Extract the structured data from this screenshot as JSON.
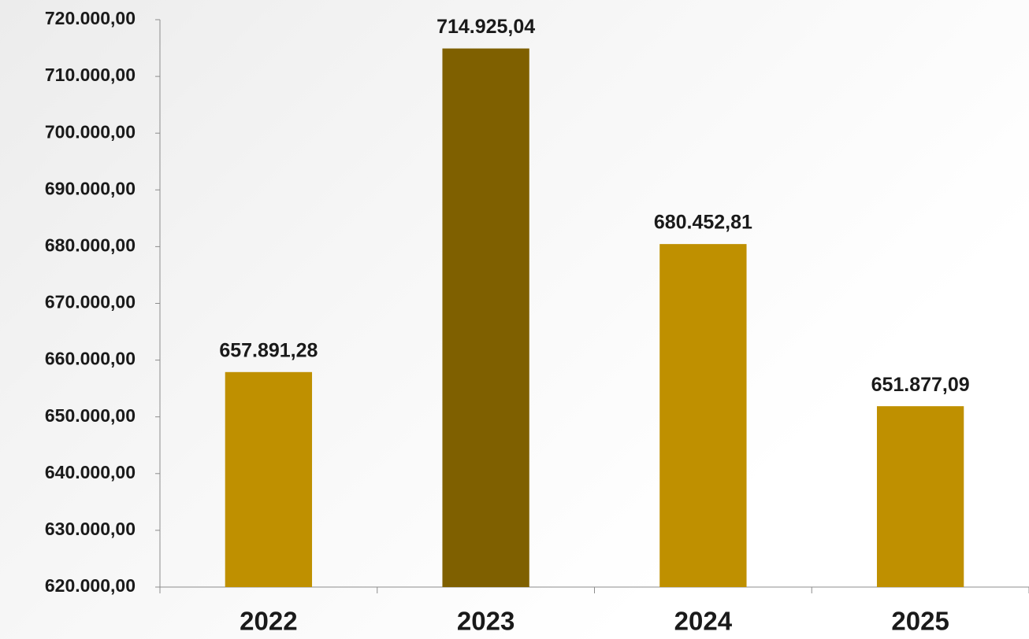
{
  "chart_data": {
    "type": "bar",
    "categories": [
      "2022",
      "2023",
      "2024",
      "2025"
    ],
    "values": [
      657891.28,
      714925.04,
      680452.81,
      651877.09
    ],
    "value_labels": [
      "657.891,28",
      "714.925,04",
      "680.452,81",
      "651.877,09"
    ],
    "colors": [
      "#bf9000",
      "#7f6000",
      "#bf9000",
      "#bf9000"
    ],
    "ylim": [
      620000,
      720000
    ],
    "yticks": [
      {
        "value": 620000,
        "label": "620.000,00"
      },
      {
        "value": 630000,
        "label": "630.000,00"
      },
      {
        "value": 640000,
        "label": "640.000,00"
      },
      {
        "value": 650000,
        "label": "650.000,00"
      },
      {
        "value": 660000,
        "label": "660.000,00"
      },
      {
        "value": 670000,
        "label": "670.000,00"
      },
      {
        "value": 680000,
        "label": "680.000,00"
      },
      {
        "value": 690000,
        "label": "690.000,00"
      },
      {
        "value": 700000,
        "label": "700.000,00"
      },
      {
        "value": 710000,
        "label": "710.000,00"
      },
      {
        "value": 720000,
        "label": "720.000,00"
      }
    ]
  }
}
